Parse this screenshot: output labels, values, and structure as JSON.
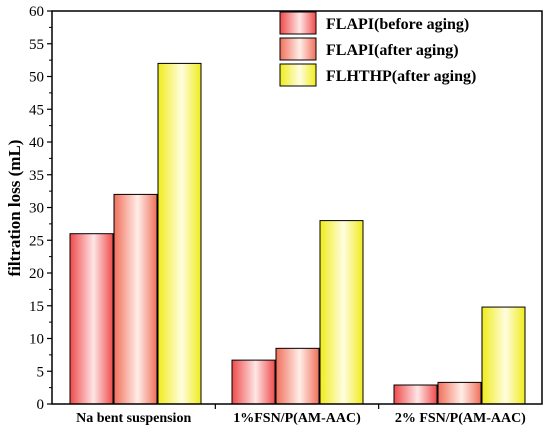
{
  "chart_data": {
    "type": "bar",
    "categories": [
      "Na bent suspension",
      "1%FSN/P(AM-AAC)",
      "2% FSN/P(AM-AAC)"
    ],
    "series": [
      {
        "name": "FLAPI(before aging)",
        "values": [
          26,
          6.7,
          2.9
        ],
        "color": "#ef4b4b",
        "gradient": [
          "#ef4b4b",
          "#ffe6e6"
        ]
      },
      {
        "name": "FLAPI(after aging)",
        "values": [
          32,
          8.5,
          3.3
        ],
        "color": "#f48a7a",
        "gradient": [
          "#f0705c",
          "#ffeee8"
        ]
      },
      {
        "name": "FLHTHP(after aging)",
        "values": [
          52,
          28,
          14.8
        ],
        "color": "#f4ef3a",
        "gradient": [
          "#f0ec1c",
          "#fffde0"
        ]
      }
    ],
    "title": "",
    "xlabel": "",
    "ylabel": "filtration loss (mL)",
    "ylim": [
      0,
      60
    ],
    "yticks": [
      0,
      5,
      10,
      15,
      20,
      25,
      30,
      35,
      40,
      45,
      50,
      55,
      60
    ],
    "grid": false,
    "legend": "top-right"
  }
}
